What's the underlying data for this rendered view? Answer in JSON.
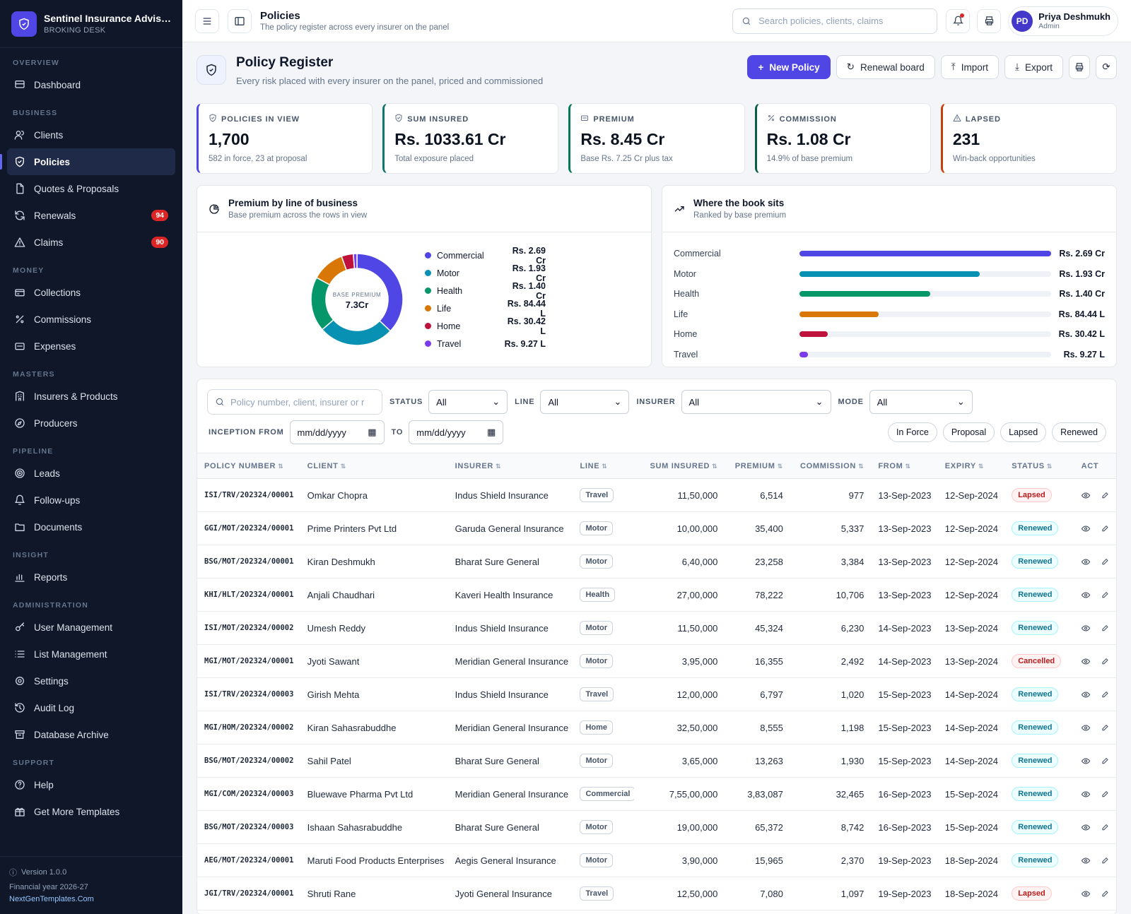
{
  "brand": {
    "title": "Sentinel Insurance Advisor...",
    "subtitle": "BROKING DESK"
  },
  "nav": [
    {
      "section": "OVERVIEW",
      "items": [
        {
          "label": "Dashboard",
          "icon": "dashboard-icon"
        }
      ]
    },
    {
      "section": "BUSINESS",
      "items": [
        {
          "label": "Clients",
          "icon": "users-icon"
        },
        {
          "label": "Policies",
          "icon": "shield-icon",
          "active": true
        },
        {
          "label": "Quotes & Proposals",
          "icon": "file-icon"
        },
        {
          "label": "Renewals",
          "icon": "refresh-icon",
          "badge": "94"
        },
        {
          "label": "Claims",
          "icon": "alert-icon",
          "badge": "90"
        }
      ]
    },
    {
      "section": "MONEY",
      "items": [
        {
          "label": "Collections",
          "icon": "wallet-icon"
        },
        {
          "label": "Commissions",
          "icon": "percent-icon"
        },
        {
          "label": "Expenses",
          "icon": "card-icon"
        }
      ]
    },
    {
      "section": "MASTERS",
      "items": [
        {
          "label": "Insurers & Products",
          "icon": "building-icon"
        },
        {
          "label": "Producers",
          "icon": "compass-icon"
        }
      ]
    },
    {
      "section": "PIPELINE",
      "items": [
        {
          "label": "Leads",
          "icon": "target-icon"
        },
        {
          "label": "Follow-ups",
          "icon": "bell-icon"
        },
        {
          "label": "Documents",
          "icon": "folder-icon"
        }
      ]
    },
    {
      "section": "INSIGHT",
      "items": [
        {
          "label": "Reports",
          "icon": "chart-icon"
        }
      ]
    },
    {
      "section": "ADMINISTRATION",
      "items": [
        {
          "label": "User Management",
          "icon": "key-icon"
        },
        {
          "label": "List Management",
          "icon": "list-icon"
        },
        {
          "label": "Settings",
          "icon": "gear-icon"
        },
        {
          "label": "Audit Log",
          "icon": "history-icon"
        },
        {
          "label": "Database Archive",
          "icon": "archive-icon"
        }
      ]
    },
    {
      "section": "SUPPORT",
      "items": [
        {
          "label": "Help",
          "icon": "help-icon"
        },
        {
          "label": "Get More Templates",
          "icon": "gift-icon"
        }
      ]
    }
  ],
  "footer": {
    "version": "Version 1.0.0",
    "fy": "Financial year 2026-27",
    "link": "NextGenTemplates.Com"
  },
  "topbar": {
    "title": "Policies",
    "subtitle": "The policy register across every insurer on the panel",
    "search_placeholder": "Search policies, clients, claims"
  },
  "user": {
    "initials": "PD",
    "name": "Priya Deshmukh",
    "role": "Admin"
  },
  "page": {
    "title": "Policy Register",
    "subtitle": "Every risk placed with every insurer on the panel, priced and commissioned",
    "actions": {
      "new": "New Policy",
      "renewal": "Renewal board",
      "import": "Import",
      "export": "Export"
    }
  },
  "kpis": [
    {
      "label": "POLICIES IN VIEW",
      "value": "1,700",
      "sub": "582 in force, 23 at proposal",
      "color": "#4f46e5",
      "icon": "shield-icon"
    },
    {
      "label": "SUM INSURED",
      "value": "Rs. 1033.61 Cr",
      "sub": "Total exposure placed",
      "color": "#0f766e",
      "icon": "shield-icon"
    },
    {
      "label": "PREMIUM",
      "value": "Rs. 8.45 Cr",
      "sub": "Base Rs. 7.25 Cr plus tax",
      "color": "#047857",
      "icon": "card-icon"
    },
    {
      "label": "COMMISSION",
      "value": "Rs. 1.08 Cr",
      "sub": "14.9% of base premium",
      "color": "#065f46",
      "icon": "percent-icon"
    },
    {
      "label": "LAPSED",
      "value": "231",
      "sub": "Win-back opportunities",
      "color": "#c2410c",
      "icon": "alert-icon"
    }
  ],
  "donut_card": {
    "title": "Premium by line of business",
    "subtitle": "Base premium across the rows in view",
    "center_label": "BASE PREMIUM",
    "center_value": "7.3Cr"
  },
  "bars_card": {
    "title": "Where the book sits",
    "subtitle": "Ranked by base premium"
  },
  "chart_data": {
    "type": "pie",
    "categories": [
      "Commercial",
      "Motor",
      "Health",
      "Life",
      "Home",
      "Travel"
    ],
    "values": [
      2.69,
      1.93,
      1.4,
      0.8444,
      0.3042,
      0.0927
    ],
    "labels": [
      "Rs. 2.69 Cr",
      "Rs. 1.93 Cr",
      "Rs. 1.40 Cr",
      "Rs. 84.44 L",
      "Rs. 30.42 L",
      "Rs. 9.27 L"
    ],
    "colors": [
      "#4f46e5",
      "#0891b2",
      "#059669",
      "#d97706",
      "#be123c",
      "#7c3aed"
    ]
  },
  "filters": {
    "search_placeholder": "Policy number, client, insurer or r",
    "status_label": "STATUS",
    "status_value": "All",
    "line_label": "LINE",
    "line_value": "All",
    "insurer_label": "INSURER",
    "insurer_value": "All",
    "mode_label": "MODE",
    "mode_value": "All",
    "inception_label": "INCEPTION FROM",
    "date_from": "mm/dd/yyyy",
    "to_label": "TO",
    "date_to": "mm/dd/yyyy",
    "chips": [
      "In Force",
      "Proposal",
      "Lapsed",
      "Renewed"
    ]
  },
  "table": {
    "columns": [
      "POLICY NUMBER",
      "CLIENT",
      "INSURER",
      "LINE",
      "SUM INSURED",
      "PREMIUM",
      "COMMISSION",
      "FROM",
      "EXPIRY",
      "STATUS",
      "ACT"
    ],
    "rows": [
      [
        "ISI/TRV/202324/00001",
        "Omkar Chopra",
        "Indus Shield Insurance",
        "Travel",
        "11,50,000",
        "6,514",
        "977",
        "13-Sep-2023",
        "12-Sep-2024",
        "Lapsed"
      ],
      [
        "GGI/MOT/202324/00001",
        "Prime Printers Pvt Ltd",
        "Garuda General Insurance",
        "Motor",
        "10,00,000",
        "35,400",
        "5,337",
        "13-Sep-2023",
        "12-Sep-2024",
        "Renewed"
      ],
      [
        "BSG/MOT/202324/00001",
        "Kiran Deshmukh",
        "Bharat Sure General",
        "Motor",
        "6,40,000",
        "23,258",
        "3,384",
        "13-Sep-2023",
        "12-Sep-2024",
        "Renewed"
      ],
      [
        "KHI/HLT/202324/00001",
        "Anjali Chaudhari",
        "Kaveri Health Insurance",
        "Health",
        "27,00,000",
        "78,222",
        "10,706",
        "13-Sep-2023",
        "12-Sep-2024",
        "Renewed"
      ],
      [
        "ISI/MOT/202324/00002",
        "Umesh Reddy",
        "Indus Shield Insurance",
        "Motor",
        "11,50,000",
        "45,324",
        "6,230",
        "14-Sep-2023",
        "13-Sep-2024",
        "Renewed"
      ],
      [
        "MGI/MOT/202324/00001",
        "Jyoti Sawant",
        "Meridian General Insurance",
        "Motor",
        "3,95,000",
        "16,355",
        "2,492",
        "14-Sep-2023",
        "13-Sep-2024",
        "Cancelled"
      ],
      [
        "ISI/TRV/202324/00003",
        "Girish Mehta",
        "Indus Shield Insurance",
        "Travel",
        "12,00,000",
        "6,797",
        "1,020",
        "15-Sep-2023",
        "14-Sep-2024",
        "Renewed"
      ],
      [
        "MGI/HOM/202324/00002",
        "Kiran Sahasrabuddhe",
        "Meridian General Insurance",
        "Home",
        "32,50,000",
        "8,555",
        "1,198",
        "15-Sep-2023",
        "14-Sep-2024",
        "Renewed"
      ],
      [
        "BSG/MOT/202324/00002",
        "Sahil Patel",
        "Bharat Sure General",
        "Motor",
        "3,65,000",
        "13,263",
        "1,930",
        "15-Sep-2023",
        "14-Sep-2024",
        "Renewed"
      ],
      [
        "MGI/COM/202324/00003",
        "Bluewave Pharma Pvt Ltd",
        "Meridian General Insurance",
        "Commercial",
        "7,55,00,000",
        "3,83,087",
        "32,465",
        "16-Sep-2023",
        "15-Sep-2024",
        "Renewed"
      ],
      [
        "BSG/MOT/202324/00003",
        "Ishaan Sahasrabuddhe",
        "Bharat Sure General",
        "Motor",
        "19,00,000",
        "65,372",
        "8,742",
        "16-Sep-2023",
        "15-Sep-2024",
        "Renewed"
      ],
      [
        "AEG/MOT/202324/00001",
        "Maruti Food Products Enterprises",
        "Aegis General Insurance",
        "Motor",
        "3,90,000",
        "15,965",
        "2,370",
        "19-Sep-2023",
        "18-Sep-2024",
        "Renewed"
      ],
      [
        "JGI/TRV/202324/00001",
        "Shruti Rane",
        "Jyoti General Insurance",
        "Travel",
        "12,50,000",
        "7,080",
        "1,097",
        "19-Sep-2023",
        "18-Sep-2024",
        "Lapsed"
      ]
    ]
  }
}
